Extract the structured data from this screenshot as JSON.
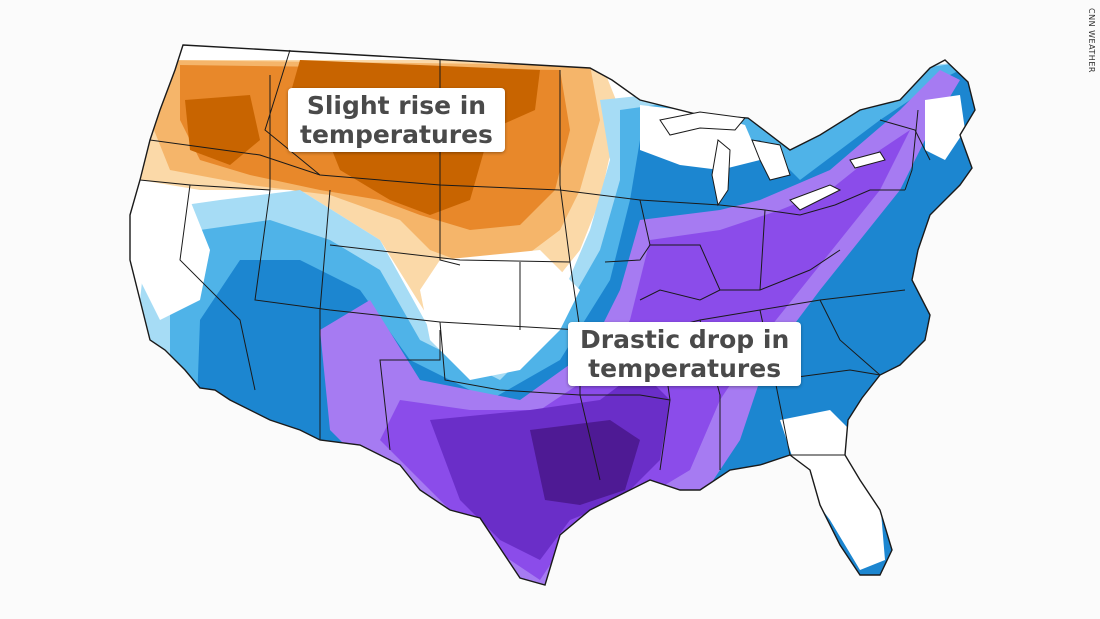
{
  "map": {
    "subject": "Contiguous United States temperature change",
    "legend_colors": {
      "warm_dark": "#c86400",
      "warm_mid": "#e8882a",
      "warm_light": "#f5b56a",
      "warm_pale": "#fbd9a8",
      "neutral": "#ffffff",
      "cool_pale": "#a6dcf5",
      "cool_light": "#4fb3e8",
      "cool_mid": "#1c86d0",
      "cool_dark": "#1565b0",
      "cold_light": "#a67bf2",
      "cold_mid": "#8b4cea",
      "cold_dark": "#6a2ec8",
      "cold_deepest": "#4e1a94"
    },
    "state_line_color": "#1a1a1a"
  },
  "callouts": {
    "rise": {
      "line1": "Slight rise in",
      "line2": "temperatures"
    },
    "drop": {
      "line1": "Drastic drop in",
      "line2": "temperatures"
    }
  },
  "credit": "CNN WEATHER"
}
